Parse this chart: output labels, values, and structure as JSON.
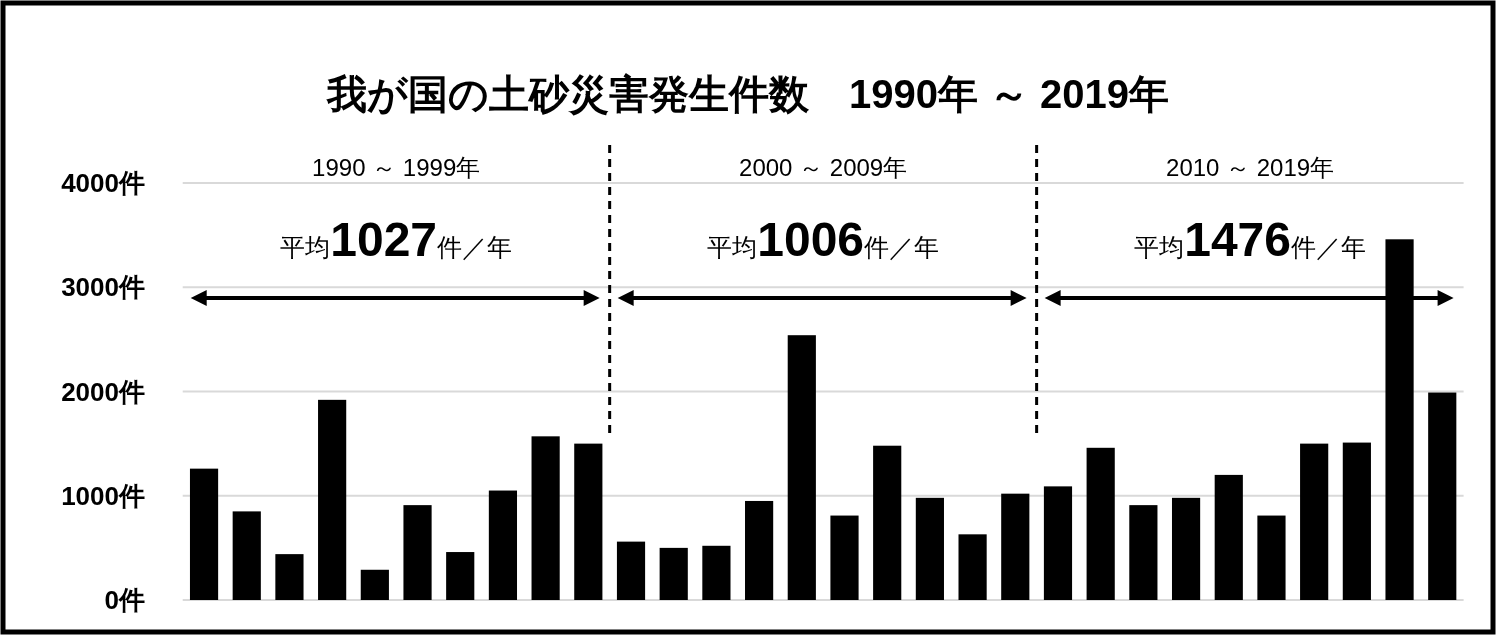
{
  "chart_data": {
    "type": "bar",
    "title": "我が国の土砂災害発生件数　1990年 ～ 2019年",
    "categories": [
      null,
      null,
      null,
      null,
      null,
      null,
      null,
      null,
      null,
      null,
      null,
      null,
      null,
      null,
      null,
      null,
      null,
      null,
      null,
      null,
      null,
      null,
      null,
      null,
      null,
      null,
      null,
      null,
      null,
      null
    ],
    "values": [
      1260,
      850,
      440,
      1920,
      290,
      910,
      460,
      1050,
      1570,
      1500,
      560,
      500,
      520,
      950,
      2540,
      810,
      1480,
      980,
      630,
      1020,
      1090,
      1460,
      910,
      980,
      1200,
      810,
      1500,
      1510,
      3460,
      1990
    ],
    "color": "#000000",
    "ylim": [
      0,
      4000
    ],
    "yticks": [
      {
        "value": 0,
        "label": "0件"
      },
      {
        "value": 1000,
        "label": "1000件"
      },
      {
        "value": 2000,
        "label": "2000件"
      },
      {
        "value": 3000,
        "label": "3000件"
      },
      {
        "value": 4000,
        "label": "4000件"
      }
    ],
    "grid": "y",
    "tick_labels": "y",
    "annotations": [
      "1990 ～ 1999年",
      "2000 ～ 2009年",
      "2010 ～ 2019年",
      "平均1027件／年",
      "平均1006件／年",
      "平均1476件／年"
    ]
  }
}
